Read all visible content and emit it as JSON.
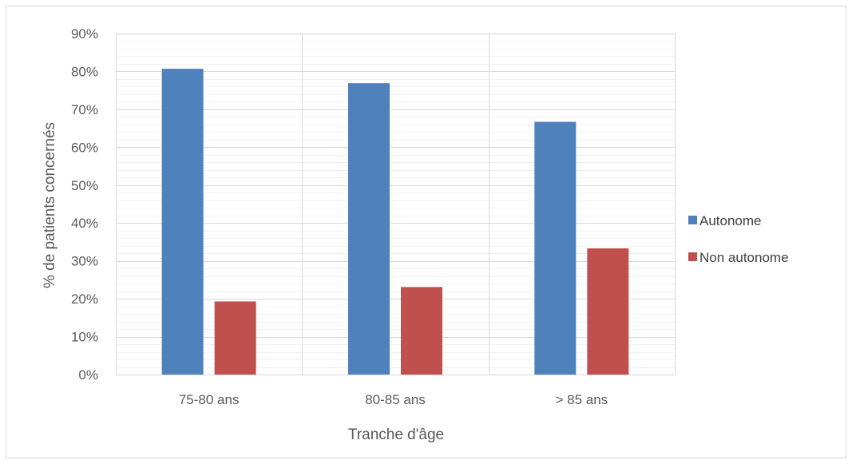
{
  "chart_data": {
    "type": "bar",
    "title": "",
    "xlabel": "Tranche d'âge",
    "ylabel": "% de patients concernés",
    "categories": [
      "75-80 ans",
      "80-85 ans",
      "> 85 ans"
    ],
    "series": [
      {
        "name": "Autonome",
        "color": "#4f81bd",
        "values": [
          80.7,
          76.9,
          66.7
        ]
      },
      {
        "name": "Non autonome",
        "color": "#c0504d",
        "values": [
          19.3,
          23.1,
          33.3
        ]
      }
    ],
    "ylim": [
      0,
      90
    ],
    "y_ticks": [
      "0%",
      "10%",
      "20%",
      "30%",
      "40%",
      "50%",
      "60%",
      "70%",
      "80%",
      "90%"
    ],
    "grid": true,
    "minor_grid": true,
    "legend_position": "right"
  }
}
